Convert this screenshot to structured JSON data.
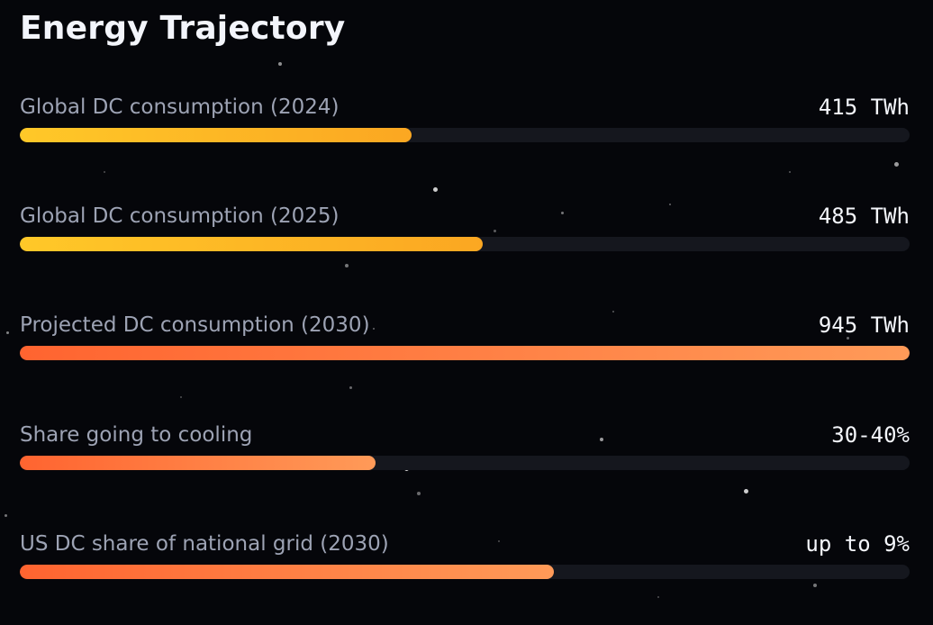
{
  "title": "Energy Trajectory",
  "metrics": [
    {
      "label": "Global DC consumption (2024)",
      "value": "415 TWh",
      "progress": 0.44,
      "gradient": [
        "#ffc828",
        "#fba722"
      ]
    },
    {
      "label": "Global DC consumption (2025)",
      "value": "485 TWh",
      "progress": 0.52,
      "gradient": [
        "#ffc828",
        "#fba722"
      ]
    },
    {
      "label": "Projected DC consumption (2030)",
      "value": "945 TWh",
      "progress": 1.0,
      "gradient": [
        "#ff6430",
        "#ff9a58"
      ]
    },
    {
      "label": "Share going to cooling",
      "value": "30-40%",
      "progress": 0.4,
      "gradient": [
        "#ff6430",
        "#ff9a58"
      ]
    },
    {
      "label": "US DC share of national grid (2030)",
      "value": "up to 9%",
      "progress": 0.6,
      "gradient": [
        "#ff6430",
        "#ff9a58"
      ]
    }
  ]
}
